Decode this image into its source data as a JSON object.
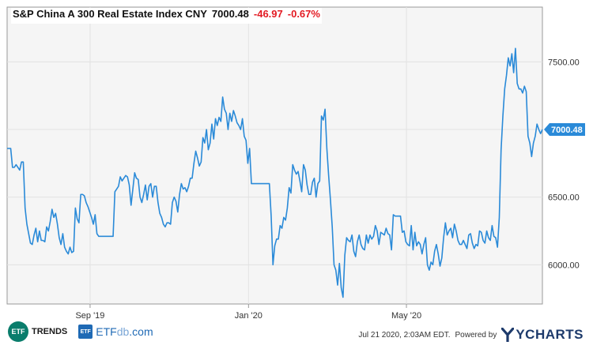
{
  "header": {
    "index_name": "S&P China A 300 Real Estate Index CNY",
    "last_value": "7000.48",
    "change": "-46.97",
    "change_pct": "-0.67%"
  },
  "footer": {
    "timestamp": "Jul 21 2020, 2:03AM EDT.",
    "powered_by": "Powered by",
    "ycharts": "YCHARTS",
    "etftrends_badge": "ETF",
    "etftrends": "TRENDS",
    "etfdb_badge": "ETF",
    "etfdb_a": "ETF",
    "etfdb_b": "db",
    "etfdb_c": ".com"
  },
  "colors": {
    "line": "#2a8ad8",
    "change": "#e31b23",
    "plot_bg": "#f5f5f5",
    "grid": "#e2e2e2",
    "label_bg": "#2a8ad8"
  },
  "chart_data": {
    "type": "line",
    "title": "S&P China A 300 Real Estate Index CNY",
    "xlabel": "",
    "ylabel": "",
    "ylim": [
      5710,
      7905
    ],
    "grid": true,
    "x_ticks": [
      {
        "label": "Sep '19",
        "pos": 0.155
      },
      {
        "label": "Jan '20",
        "pos": 0.451
      },
      {
        "label": "May '20",
        "pos": 0.746
      }
    ],
    "y_ticks": [
      {
        "label": "6000.00",
        "value": 6000
      },
      {
        "label": "6500.00",
        "value": 6500
      },
      {
        "label": "7000.00",
        "value": 7000
      },
      {
        "label": "7500.00",
        "value": 7500
      }
    ],
    "last_label": "7000.48",
    "last_value": 7000.48,
    "series": [
      {
        "values": [
          6860,
          6860,
          6860,
          6720,
          6720,
          6740,
          6720,
          6700,
          6760,
          6760,
          6420,
          6300,
          6230,
          6160,
          6150,
          6220,
          6270,
          6170,
          6250,
          6180,
          6180,
          6170,
          6280,
          6250,
          6320,
          6410,
          6350,
          6380,
          6300,
          6200,
          6150,
          6230,
          6130,
          6100,
          6080,
          6130,
          6090,
          6100,
          6420,
          6340,
          6310,
          6520,
          6520,
          6510,
          6460,
          6430,
          6390,
          6350,
          6300,
          6370,
          6230,
          6210,
          6210,
          6210,
          6210,
          6210,
          6210,
          6210,
          6210,
          6210,
          6540,
          6560,
          6580,
          6650,
          6620,
          6640,
          6660,
          6650,
          6590,
          6440,
          6560,
          6680,
          6640,
          6630,
          6500,
          6460,
          6520,
          6590,
          6480,
          6580,
          6600,
          6500,
          6580,
          6580,
          6460,
          6380,
          6350,
          6300,
          6280,
          6310,
          6310,
          6300,
          6460,
          6500,
          6470,
          6390,
          6520,
          6600,
          6560,
          6570,
          6540,
          6580,
          6640,
          6640,
          6750,
          6840,
          6790,
          6730,
          6760,
          6940,
          6900,
          7000,
          6850,
          6900,
          7040,
          6930,
          7080,
          7030,
          7090,
          7060,
          7240,
          7150,
          7120,
          7000,
          7120,
          7060,
          7140,
          7100,
          7050,
          7030,
          7000,
          7080,
          6950,
          6920,
          6750,
          6860,
          6600,
          6600,
          6600,
          6600,
          6600,
          6600,
          6600,
          6600,
          6600,
          6600,
          6600,
          6360,
          6000,
          6140,
          6190,
          6190,
          6290,
          6270,
          6350,
          6330,
          6420,
          6570,
          6530,
          6740,
          6700,
          6670,
          6690,
          6620,
          6540,
          6740,
          6700,
          6590,
          6520,
          6520,
          6610,
          6640,
          6500,
          6600,
          6620,
          7100,
          7070,
          7150,
          6860,
          6660,
          6480,
          6280,
          6000,
          5960,
          5850,
          6010,
          5830,
          5760,
          6070,
          6200,
          6180,
          6170,
          6220,
          6100,
          6060,
          6170,
          6220,
          6150,
          6120,
          6110,
          6220,
          6160,
          6220,
          6190,
          6210,
          6290,
          6250,
          6150,
          6240,
          6230,
          6220,
          6270,
          6230,
          6220,
          6110,
          6370,
          6360,
          6360,
          6360,
          6360,
          6240,
          6250,
          6170,
          6150,
          6140,
          6290,
          6110,
          6240,
          6140,
          6170,
          6150,
          6080,
          6150,
          6200,
          6000,
          5960,
          6020,
          6000,
          6100,
          6150,
          6080,
          5990,
          6050,
          6200,
          6310,
          6220,
          6250,
          6270,
          6200,
          6300,
          6250,
          6180,
          6150,
          6150,
          6180,
          6150,
          6120,
          6220,
          6230,
          6160,
          6120,
          6150,
          6140,
          6250,
          6240,
          6180,
          6160,
          6250,
          6200,
          6180,
          6290,
          6210,
          6200,
          6130,
          6350,
          6850,
          7100,
          7300,
          7400,
          7530,
          7470,
          7560,
          7420,
          7600,
          7340,
          7300,
          7300,
          7270,
          7320,
          7280,
          6950,
          6900,
          6800,
          6900,
          6950,
          7040,
          7000,
          6970,
          7000.48
        ]
      }
    ]
  }
}
